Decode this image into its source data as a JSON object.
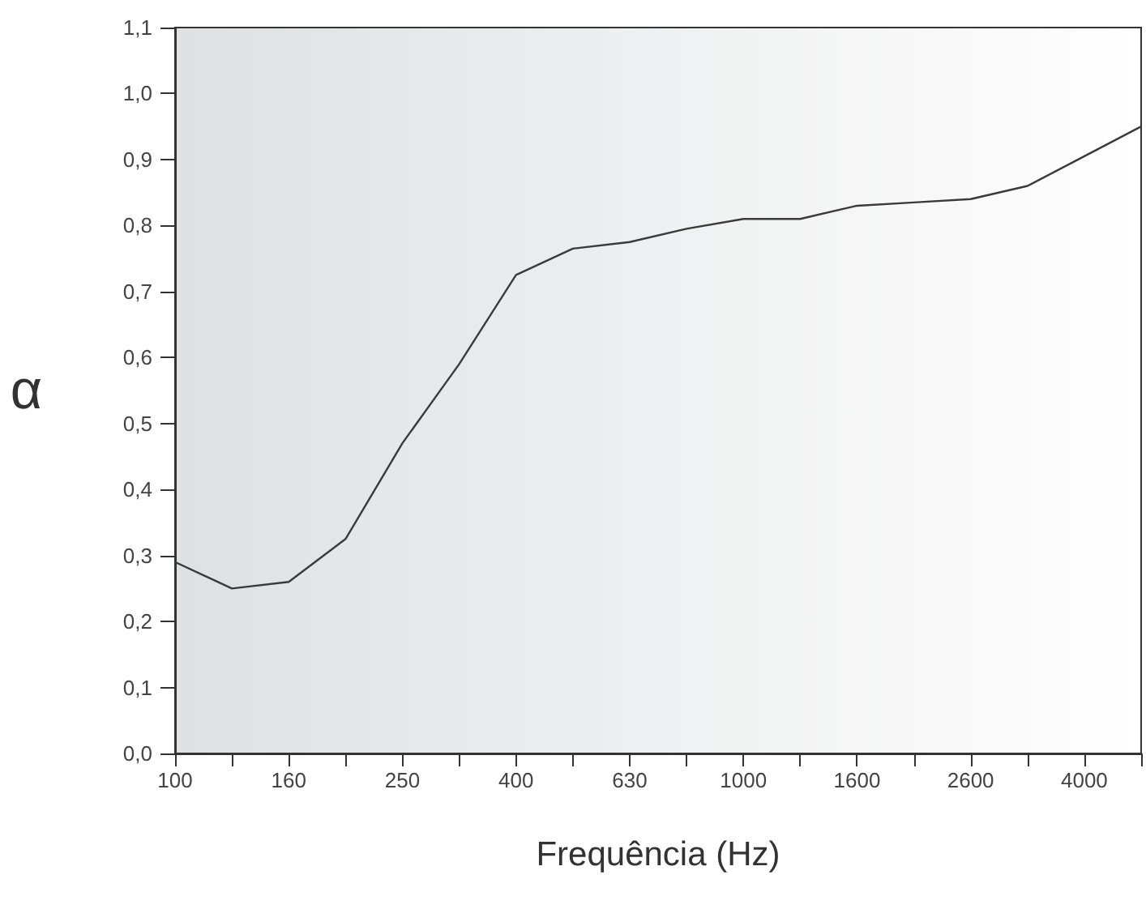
{
  "chart_data": {
    "type": "line",
    "xlabel": "Frequência (Hz)",
    "ylabel": "α",
    "categories": [
      "100",
      null,
      "160",
      null,
      "250",
      null,
      "400",
      null,
      "630",
      null,
      "1000",
      null,
      "1600",
      null,
      "2600",
      null,
      "4000",
      null
    ],
    "series": [
      {
        "color": "#3a3a3a",
        "values": [
          0.29,
          0.25,
          0.26,
          0.325,
          0.47,
          0.59,
          0.725,
          0.765,
          0.775,
          0.795,
          0.81,
          0.81,
          0.83,
          0.835,
          0.84,
          0.86,
          0.905,
          0.95
        ]
      }
    ],
    "ylim": [
      0,
      1.1
    ],
    "yticks": [
      {
        "value": 0,
        "label": "0,0"
      },
      {
        "value": 0.1,
        "label": "0,1"
      },
      {
        "value": 0.2,
        "label": "0,2"
      },
      {
        "value": 0.3,
        "label": "0,3"
      },
      {
        "value": 0.4,
        "label": "0,4"
      },
      {
        "value": 0.5,
        "label": "0,5"
      },
      {
        "value": 0.6,
        "label": "0,6"
      },
      {
        "value": 0.7,
        "label": "0,7"
      },
      {
        "value": 0.8,
        "label": "0,8"
      },
      {
        "value": 0.9,
        "label": "0,9"
      },
      {
        "value": 1,
        "label": "1,0"
      },
      {
        "value": 1.1,
        "label": "1,1"
      }
    ],
    "grid": false,
    "marker": "none",
    "line_style": "solid"
  }
}
